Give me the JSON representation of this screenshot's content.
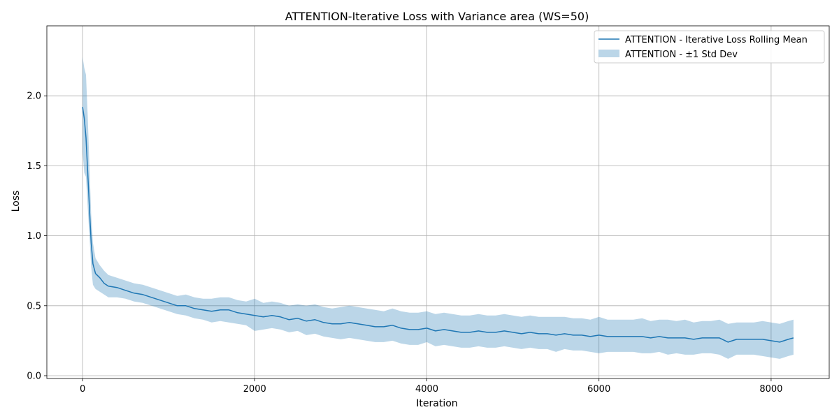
{
  "chart_data": {
    "type": "line",
    "title": "ATTENTION-Iterative Loss with Variance area (WS=50)",
    "xlabel": "Iteration",
    "ylabel": "Loss",
    "xlim": [
      -415,
      8675
    ],
    "ylim": [
      -0.02,
      2.5
    ],
    "xticks": [
      0,
      2000,
      4000,
      6000,
      8000
    ],
    "xtick_labels": [
      "0",
      "2000",
      "4000",
      "6000",
      "8000"
    ],
    "yticks": [
      0.0,
      0.5,
      1.0,
      1.5,
      2.0
    ],
    "ytick_labels": [
      "0.0",
      "0.5",
      "1.0",
      "1.5",
      "2.0"
    ],
    "grid": true,
    "legend_position": "top-right",
    "colors": {
      "line": "#1f77b4",
      "band": "#1f77b4",
      "grid": "#b0b0b0"
    },
    "series": [
      {
        "name": "ATTENTION - Iterative Loss Rolling Mean",
        "kind": "line",
        "x": [
          0,
          20,
          40,
          60,
          80,
          100,
          120,
          150,
          200,
          250,
          300,
          400,
          500,
          600,
          700,
          800,
          900,
          1000,
          1100,
          1200,
          1300,
          1400,
          1500,
          1600,
          1700,
          1800,
          1900,
          2000,
          2100,
          2200,
          2300,
          2400,
          2500,
          2600,
          2700,
          2800,
          2900,
          3000,
          3100,
          3200,
          3300,
          3400,
          3500,
          3600,
          3700,
          3800,
          3900,
          4000,
          4100,
          4200,
          4300,
          4400,
          4500,
          4600,
          4700,
          4800,
          4900,
          5000,
          5100,
          5200,
          5300,
          5400,
          5500,
          5600,
          5700,
          5800,
          5900,
          6000,
          6100,
          6200,
          6300,
          6400,
          6500,
          6600,
          6700,
          6800,
          6900,
          7000,
          7100,
          7200,
          7300,
          7400,
          7500,
          7600,
          7700,
          7800,
          7900,
          8000,
          8100,
          8200,
          8260
        ],
        "values": [
          1.92,
          1.84,
          1.7,
          1.45,
          1.2,
          0.95,
          0.8,
          0.73,
          0.7,
          0.66,
          0.64,
          0.63,
          0.61,
          0.59,
          0.58,
          0.56,
          0.54,
          0.52,
          0.5,
          0.5,
          0.48,
          0.47,
          0.46,
          0.47,
          0.47,
          0.45,
          0.44,
          0.43,
          0.42,
          0.43,
          0.42,
          0.4,
          0.41,
          0.39,
          0.4,
          0.38,
          0.37,
          0.37,
          0.38,
          0.37,
          0.36,
          0.35,
          0.35,
          0.36,
          0.34,
          0.33,
          0.33,
          0.34,
          0.32,
          0.33,
          0.32,
          0.31,
          0.31,
          0.32,
          0.31,
          0.31,
          0.32,
          0.31,
          0.3,
          0.31,
          0.3,
          0.3,
          0.29,
          0.3,
          0.29,
          0.29,
          0.28,
          0.29,
          0.28,
          0.28,
          0.28,
          0.28,
          0.28,
          0.27,
          0.28,
          0.27,
          0.27,
          0.27,
          0.26,
          0.27,
          0.27,
          0.27,
          0.24,
          0.26,
          0.26,
          0.26,
          0.26,
          0.25,
          0.24,
          0.26,
          0.27
        ]
      },
      {
        "name": "ATTENTION - ±1 Std Dev",
        "kind": "band",
        "x": [
          0,
          20,
          40,
          60,
          80,
          100,
          120,
          150,
          200,
          250,
          300,
          400,
          500,
          600,
          700,
          800,
          900,
          1000,
          1100,
          1200,
          1300,
          1400,
          1500,
          1600,
          1700,
          1800,
          1900,
          2000,
          2100,
          2200,
          2300,
          2400,
          2500,
          2600,
          2700,
          2800,
          2900,
          3000,
          3100,
          3200,
          3300,
          3400,
          3500,
          3600,
          3700,
          3800,
          3900,
          4000,
          4100,
          4200,
          4300,
          4400,
          4500,
          4600,
          4700,
          4800,
          4900,
          5000,
          5100,
          5200,
          5300,
          5400,
          5500,
          5600,
          5700,
          5800,
          5900,
          6000,
          6100,
          6200,
          6300,
          6400,
          6500,
          6600,
          6700,
          6800,
          6900,
          7000,
          7100,
          7200,
          7300,
          7400,
          7500,
          7600,
          7700,
          7800,
          7900,
          8000,
          8100,
          8200,
          8260
        ],
        "lower": [
          1.6,
          1.45,
          1.42,
          1.2,
          1.0,
          0.78,
          0.65,
          0.62,
          0.6,
          0.58,
          0.56,
          0.56,
          0.55,
          0.53,
          0.52,
          0.5,
          0.48,
          0.46,
          0.44,
          0.43,
          0.41,
          0.4,
          0.38,
          0.39,
          0.38,
          0.37,
          0.36,
          0.32,
          0.33,
          0.34,
          0.33,
          0.31,
          0.32,
          0.29,
          0.3,
          0.28,
          0.27,
          0.26,
          0.27,
          0.26,
          0.25,
          0.24,
          0.24,
          0.25,
          0.23,
          0.22,
          0.22,
          0.24,
          0.21,
          0.22,
          0.21,
          0.2,
          0.2,
          0.21,
          0.2,
          0.2,
          0.21,
          0.2,
          0.19,
          0.2,
          0.19,
          0.19,
          0.17,
          0.19,
          0.18,
          0.18,
          0.17,
          0.16,
          0.17,
          0.17,
          0.17,
          0.17,
          0.16,
          0.16,
          0.17,
          0.15,
          0.16,
          0.15,
          0.15,
          0.16,
          0.16,
          0.15,
          0.12,
          0.15,
          0.15,
          0.15,
          0.14,
          0.13,
          0.12,
          0.14,
          0.15
        ],
        "upper": [
          2.28,
          2.2,
          2.15,
          1.85,
          1.5,
          1.15,
          0.95,
          0.84,
          0.79,
          0.75,
          0.72,
          0.7,
          0.68,
          0.66,
          0.65,
          0.63,
          0.61,
          0.59,
          0.57,
          0.58,
          0.56,
          0.55,
          0.55,
          0.56,
          0.56,
          0.54,
          0.53,
          0.55,
          0.52,
          0.53,
          0.52,
          0.5,
          0.51,
          0.5,
          0.51,
          0.49,
          0.48,
          0.49,
          0.5,
          0.49,
          0.48,
          0.47,
          0.46,
          0.48,
          0.46,
          0.45,
          0.45,
          0.46,
          0.44,
          0.45,
          0.44,
          0.43,
          0.43,
          0.44,
          0.43,
          0.43,
          0.44,
          0.43,
          0.42,
          0.43,
          0.42,
          0.42,
          0.42,
          0.42,
          0.41,
          0.41,
          0.4,
          0.42,
          0.4,
          0.4,
          0.4,
          0.4,
          0.41,
          0.39,
          0.4,
          0.4,
          0.39,
          0.4,
          0.38,
          0.39,
          0.39,
          0.4,
          0.37,
          0.38,
          0.38,
          0.38,
          0.39,
          0.38,
          0.37,
          0.39,
          0.4
        ]
      }
    ]
  }
}
